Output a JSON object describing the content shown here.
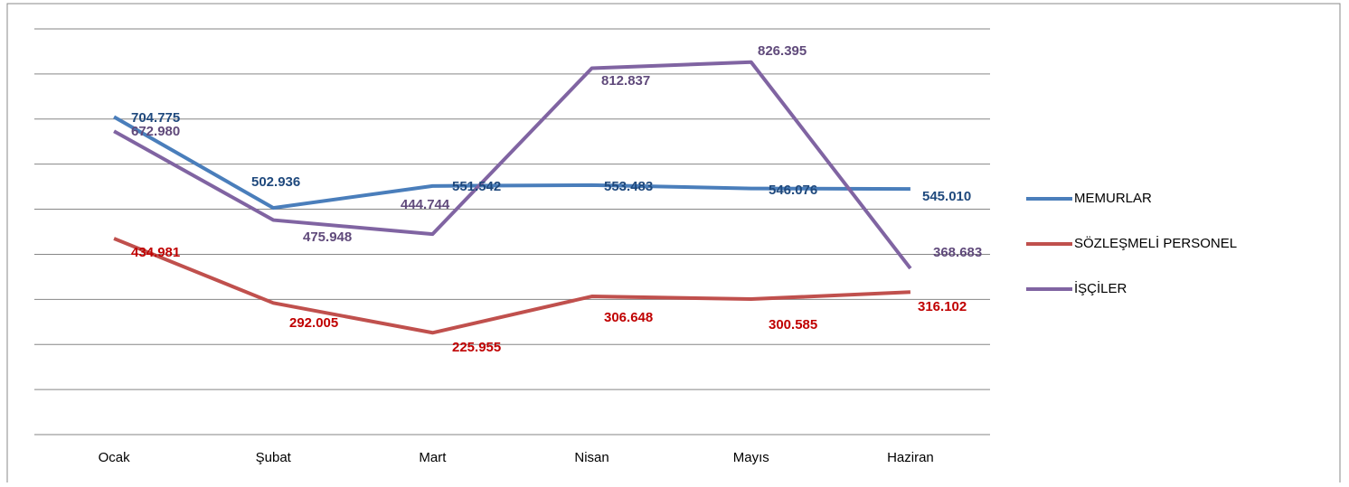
{
  "chart_data": {
    "type": "line",
    "categories": [
      "Ocak",
      "Şubat",
      "Mart",
      "Nisan",
      "Mayıs",
      "Haziran"
    ],
    "series": [
      {
        "name": "MEMURLAR",
        "color": "#4a7ebb",
        "label_color": "#1f497d",
        "values": [
          704.775,
          502.936,
          551.542,
          553.483,
          546.076,
          545.01
        ],
        "value_labels": [
          "704.775",
          "502.936",
          "551.542",
          "553.483",
          "546.076",
          "545.010"
        ]
      },
      {
        "name": "SÖZLEŞMELİ PERSONEL",
        "color": "#c0504d",
        "label_color": "#c00000",
        "values": [
          434.981,
          292.005,
          225.955,
          306.648,
          300.585,
          316.102
        ],
        "value_labels": [
          "434.981",
          "292.005",
          "225.955",
          "306.648",
          "300.585",
          "316.102"
        ]
      },
      {
        "name": "İŞÇİLER",
        "color": "#8064a2",
        "label_color": "#604a7b",
        "values": [
          672.98,
          475.948,
          444.744,
          812.837,
          826.395,
          368.683
        ],
        "value_labels": [
          "672.980",
          "475.948",
          "444.744",
          "812.837",
          "826.395",
          "368.683"
        ]
      }
    ],
    "ylim": [
      0,
      900
    ],
    "yticks": [
      0,
      100,
      200,
      300,
      400,
      500,
      600,
      700,
      800,
      900
    ],
    "grid": true,
    "legend": "right"
  }
}
